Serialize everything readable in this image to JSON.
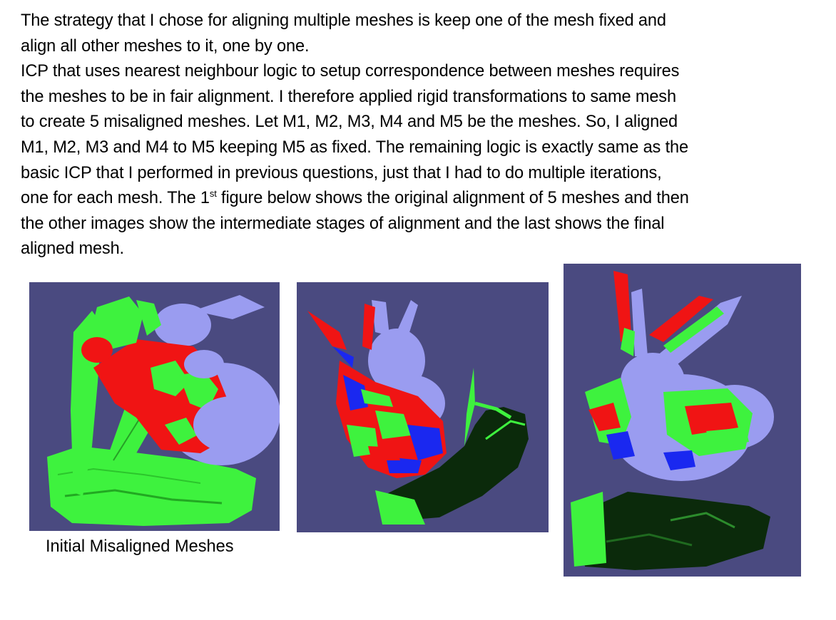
{
  "paragraph": {
    "line1": "The strategy that I chose for aligning multiple meshes is keep one of the mesh fixed and",
    "line2": "align all other meshes to it, one by one.",
    "line3": "ICP that uses nearest neighbour logic to setup correspondence between meshes requires",
    "line4": "the meshes to be in fair alignment. I therefore applied rigid transformations to same mesh",
    "line5": "to create 5 misaligned meshes. Let M1, M2, M3, M4 and M5 be the meshes. So, I aligned",
    "line6": "M1, M2, M3 and M4 to M5 keeping M5 as fixed. The remaining logic is exactly same as the",
    "line7": "basic ICP that I performed in previous questions, just that I had to do multiple iterations,",
    "line8_a": "one for each mesh.  The 1",
    "line8_sup": "st",
    "line8_b": " figure below shows the original alignment of 5 meshes and then",
    "line9": "the other images show the intermediate stages of alignment and the  last shows the final",
    "line10": "aligned mesh."
  },
  "figures": [
    {
      "caption": "Initial Misaligned Meshes"
    },
    {
      "caption": ""
    },
    {
      "caption": ""
    }
  ],
  "colors": {
    "background": "#4a4a80",
    "bunny_lavender": "#9a9cf0",
    "mesh_red": "#f01414",
    "mesh_green": "#3ef23e",
    "mesh_blue": "#1a28f0",
    "mesh_dark": "#0b2a0b"
  }
}
